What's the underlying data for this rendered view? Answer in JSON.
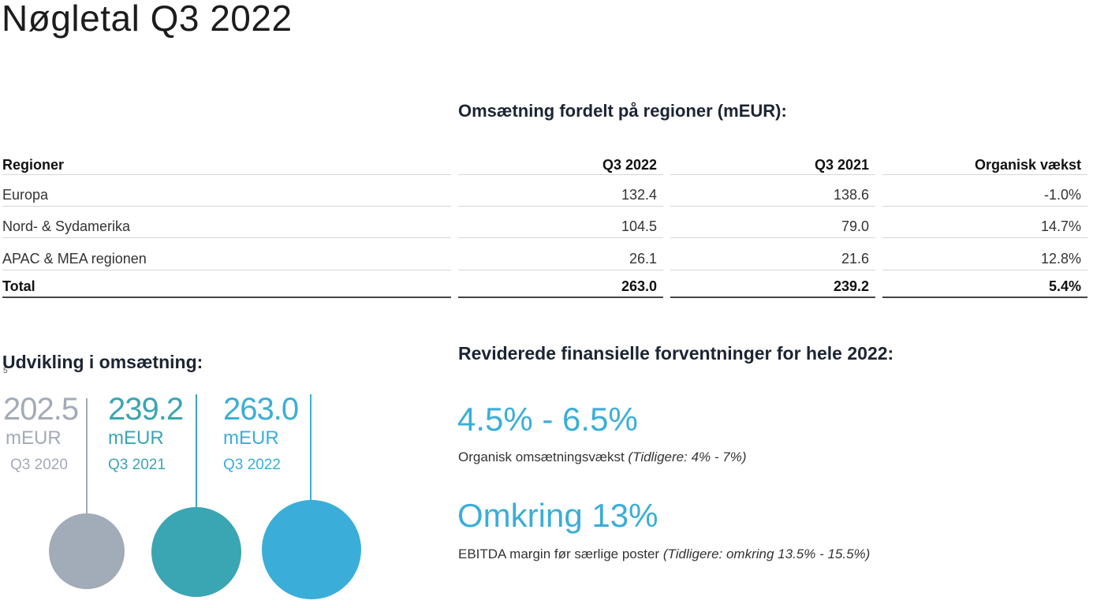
{
  "title": "Nøgletal Q3 2022",
  "colors": {
    "gray": "#a2abb8",
    "teal": "#3aa5b3",
    "blue": "#3aaed8",
    "heading": "#1c2433"
  },
  "revenue_table": {
    "heading": "Omsætning fordelt på regioner (mEUR):",
    "columns": [
      "Regioner",
      "Q3 2022",
      "Q3 2021",
      "Organisk vækst"
    ],
    "rows": [
      [
        "Europa",
        "132.4",
        "138.6",
        "-1.0%"
      ],
      [
        "Nord- & Sydamerika",
        "104.5",
        "79.0",
        "14.7%"
      ],
      [
        "APAC & MEA regionen",
        "26.1",
        "21.6",
        "12.8%"
      ]
    ],
    "total": [
      "Total",
      "263.0",
      "239.2",
      "5.4%"
    ]
  },
  "development": {
    "heading": "Udvikling i omsætning:",
    "footnote_mark": "5",
    "years": [
      {
        "value": "202.5",
        "unit": "mEUR",
        "label": "Q3 2020",
        "color": "#a2abb8"
      },
      {
        "value": "239.2",
        "unit": "mEUR",
        "label": "Q3 2021",
        "color": "#3aa5b3"
      },
      {
        "value": "263.0",
        "unit": "mEUR",
        "label": "Q3 2022",
        "color": "#3aaed8"
      }
    ]
  },
  "guidance": {
    "heading": "Reviderede finansielle forventninger for hele 2022:",
    "items": [
      {
        "value": "4.5% - 6.5%",
        "description": "Organisk omsætningsvækst",
        "previous": "(Tidligere: 4% - 7%)"
      },
      {
        "value": "Omkring 13%",
        "description": "EBITDA margin før særlige poster",
        "previous": "(Tidligere: omkring 13.5% - 15.5%)"
      }
    ]
  }
}
